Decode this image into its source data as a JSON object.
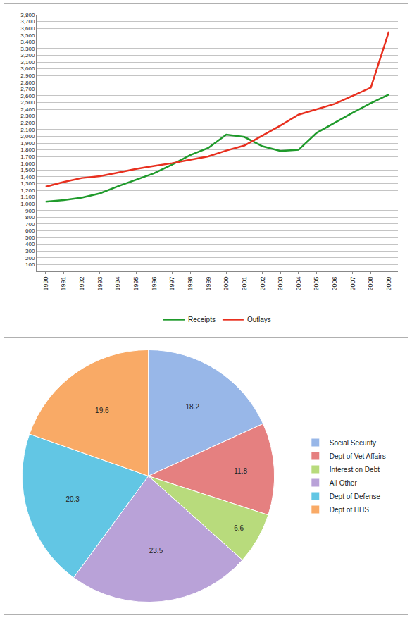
{
  "chart_data": [
    {
      "type": "line",
      "categories": [
        "1990",
        "1991",
        "1992",
        "1993",
        "1994",
        "1995",
        "1996",
        "1997",
        "1998",
        "1999",
        "2000",
        "2001",
        "2002",
        "2003",
        "2004",
        "2005",
        "2006",
        "2007",
        "2008",
        "2009"
      ],
      "series": [
        {
          "name": "Receipts",
          "color": "#1f9a2b",
          "values": [
            1032,
            1055,
            1091,
            1154,
            1259,
            1352,
            1453,
            1579,
            1722,
            1827,
            2025,
            1991,
            1853,
            1782,
            1800,
            2050,
            2200,
            2350,
            2490,
            2620
          ]
        },
        {
          "name": "Outlays",
          "color": "#e8301f",
          "values": [
            1253,
            1324,
            1382,
            1410,
            1462,
            1516,
            1561,
            1601,
            1652,
            1702,
            1789,
            1863,
            2011,
            2160,
            2320,
            2400,
            2480,
            2600,
            2720,
            3550
          ]
        }
      ],
      "ylim": [
        0,
        3800
      ],
      "yticks": [
        100,
        200,
        300,
        400,
        500,
        600,
        700,
        800,
        900,
        {
          "value": 1000,
          "label": "1,000"
        },
        {
          "value": 1100,
          "label": "1,100"
        },
        {
          "value": 1200,
          "label": "1,200"
        },
        {
          "value": 1300,
          "label": "1,300"
        },
        {
          "value": 1400,
          "label": "1,400"
        },
        {
          "value": 1500,
          "label": "1,500"
        },
        {
          "value": 1600,
          "label": "1,600"
        },
        {
          "value": 1700,
          "label": "1,700"
        },
        {
          "value": 1800,
          "label": "1,800"
        },
        {
          "value": 1900,
          "label": "1,900"
        },
        {
          "value": 2000,
          "label": "2,000"
        },
        {
          "value": 2100,
          "label": "2,100"
        },
        {
          "value": 2200,
          "label": "2,200"
        },
        {
          "value": 2300,
          "label": "2,300"
        },
        {
          "value": 2400,
          "label": "2,400"
        },
        {
          "value": 2500,
          "label": "2,500"
        },
        {
          "value": 2600,
          "label": "2,600"
        },
        {
          "value": 2700,
          "label": "2,700"
        },
        {
          "value": 2800,
          "label": "2,800"
        },
        {
          "value": 2900,
          "label": "2,900"
        },
        {
          "value": 3000,
          "label": "3,000"
        },
        {
          "value": 3100,
          "label": "3,100"
        },
        {
          "value": 3200,
          "label": "3,200"
        },
        {
          "value": 3300,
          "label": "3,300"
        },
        {
          "value": 3400,
          "label": "3,400"
        },
        {
          "value": 3500,
          "label": "3,500"
        },
        {
          "value": 3600,
          "label": "3,600"
        },
        {
          "value": 3700,
          "label": "3,700"
        },
        {
          "value": 3800,
          "label": "3,800"
        }
      ],
      "grid": true,
      "legend": "bottom"
    },
    {
      "type": "pie",
      "categories": [
        "Social Security",
        "Dept of Vet Affairs",
        "Interest on Debt",
        "All Other",
        "Dept of Defense",
        "Dept of HHS"
      ],
      "values": [
        18.2,
        11.8,
        6.6,
        23.5,
        20.3,
        19.6
      ],
      "colors": [
        "#98b7e8",
        "#e58080",
        "#b8db7c",
        "#b9a2d8",
        "#62c6e4",
        "#f9aa66"
      ],
      "data_labels": true,
      "legend": "right"
    }
  ]
}
